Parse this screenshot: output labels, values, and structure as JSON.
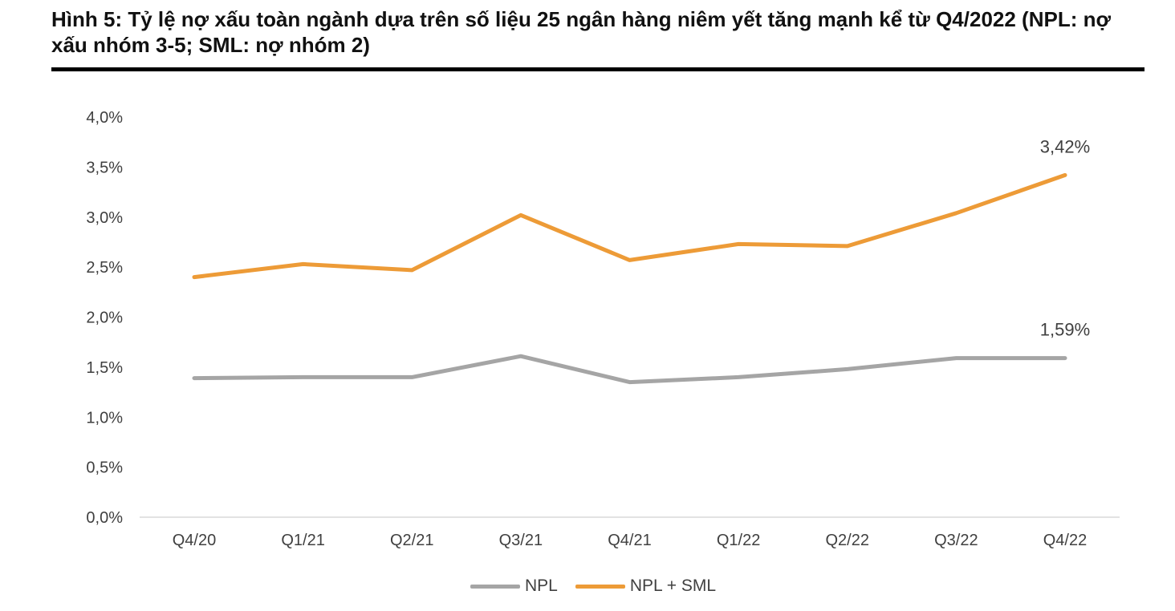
{
  "title": "Hình 5: Tỷ lệ nợ xấu toàn ngành dựa trên số liệu 25 ngân hàng niêm yết tăng mạnh kể từ Q4/2022 (NPL: nợ xấu nhóm 3-5; SML: nợ nhóm 2)",
  "chart_data": {
    "type": "line",
    "title": "Hình 5: Tỷ lệ nợ xấu toàn ngành dựa trên số liệu 25 ngân hàng niêm yết tăng mạnh kể từ Q4/2022 (NPL: nợ xấu nhóm 3-5; SML: nợ nhóm 2)",
    "xlabel": "",
    "ylabel": "",
    "categories": [
      "Q4/20",
      "Q1/21",
      "Q2/21",
      "Q3/21",
      "Q4/21",
      "Q1/22",
      "Q2/22",
      "Q3/22",
      "Q4/22"
    ],
    "ylim": [
      0,
      4.0
    ],
    "yticks": [
      0,
      0.5,
      1.0,
      1.5,
      2.0,
      2.5,
      3.0,
      3.5,
      4.0
    ],
    "ytick_labels": [
      "0,0%",
      "0,5%",
      "1,0%",
      "1,5%",
      "2,0%",
      "2,5%",
      "3,0%",
      "3,5%",
      "4,0%"
    ],
    "grid": false,
    "legend_position": "bottom",
    "series": [
      {
        "name": "NPL",
        "color": "#a5a5a5",
        "values": [
          1.39,
          1.4,
          1.4,
          1.61,
          1.35,
          1.4,
          1.48,
          1.59,
          1.59
        ],
        "end_label": "1,59%"
      },
      {
        "name": "NPL + SML",
        "color": "#ed9b37",
        "values": [
          2.4,
          2.53,
          2.47,
          3.02,
          2.57,
          2.73,
          2.71,
          3.04,
          3.42
        ],
        "end_label": "3,42%"
      }
    ]
  }
}
